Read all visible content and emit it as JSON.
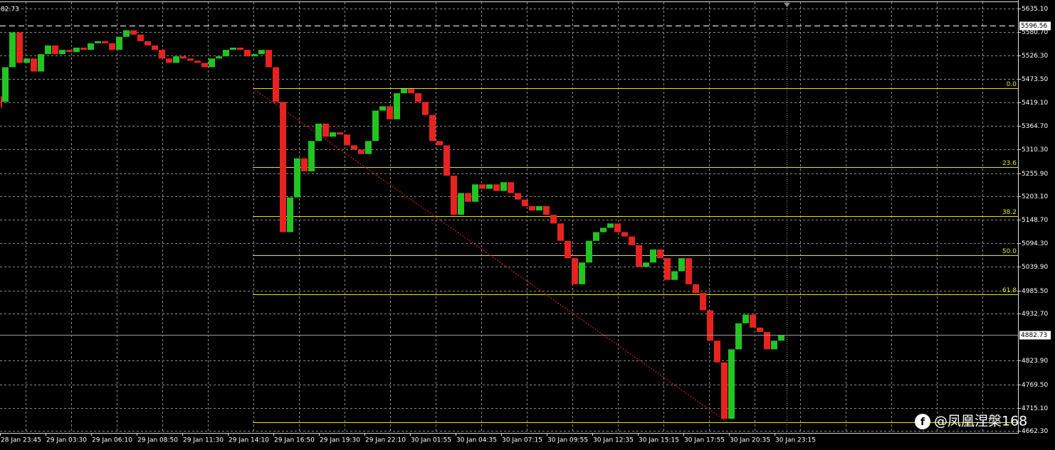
{
  "chart_data": {
    "type": "candlestick",
    "corner_label": "82.73",
    "ylim": [
      4660.7,
      5646.6
    ],
    "yticks": [
      {
        "value": 5635.1,
        "label": "5635.10"
      },
      {
        "value": 5580.7,
        "label": "5580.70"
      },
      {
        "value": 5526.3,
        "label": "5526.30"
      },
      {
        "value": 5473.5,
        "label": "5473.50"
      },
      {
        "value": 5419.1,
        "label": "5419.10"
      },
      {
        "value": 5364.7,
        "label": "5364.70"
      },
      {
        "value": 5310.3,
        "label": "5310.30"
      },
      {
        "value": 5255.9,
        "label": "5255.90"
      },
      {
        "value": 5203.1,
        "label": "5203.10"
      },
      {
        "value": 5148.7,
        "label": "5148.70"
      },
      {
        "value": 5094.3,
        "label": "5094.30"
      },
      {
        "value": 5039.9,
        "label": "5039.90"
      },
      {
        "value": 4985.5,
        "label": "4985.50"
      },
      {
        "value": 4932.7,
        "label": "4932.70"
      },
      {
        "value": 4823.9,
        "label": "4823.90"
      },
      {
        "value": 4769.5,
        "label": "4769.50"
      },
      {
        "value": 4715.1,
        "label": "4715.10"
      },
      {
        "value": 4662.3,
        "label": "4662.30"
      }
    ],
    "x_labels": [
      "28 Jan 23:45",
      "29 Jan 03:30",
      "29 Jan 06:10",
      "29 Jan 08:50",
      "29 Jan 11:30",
      "29 Jan 14:10",
      "29 Jan 16:50",
      "29 Jan 19:30",
      "29 Jan 22:10",
      "30 Jan 01:55",
      "30 Jan 04:35",
      "30 Jan 07:15",
      "30 Jan 09:55",
      "30 Jan 12:35",
      "30 Jan 15:15",
      "30 Jan 17:55",
      "30 Jan 20:35",
      "30 Jan 23:15"
    ],
    "grid": true,
    "series": [
      {
        "up_color": "#22c422",
        "down_color": "#e8231f",
        "values": [
          5420,
          5500,
          5580,
          5510,
          5520,
          5490,
          5530,
          5550,
          5530,
          5540,
          5535,
          5545,
          5540,
          5555,
          5560,
          5555,
          5540,
          5570,
          5585,
          5575,
          5560,
          5550,
          5540,
          5520,
          5510,
          5525,
          5520,
          5515,
          5510,
          5500,
          5520,
          5525,
          5540,
          5545,
          5540,
          5525,
          5530,
          5540,
          5500,
          5420,
          5120,
          5200,
          5290,
          5260,
          5330,
          5370,
          5340,
          5350,
          5345,
          5320,
          5310,
          5300,
          5330,
          5400,
          5410,
          5380,
          5440,
          5450,
          5440,
          5420,
          5390,
          5330,
          5320,
          5250,
          5160,
          5210,
          5190,
          5230,
          5220,
          5230,
          5215,
          5235,
          5210,
          5195,
          5180,
          5170,
          5180,
          5160,
          5140,
          5100,
          5060,
          5000,
          5050,
          5100,
          5120,
          5130,
          5140,
          5120,
          5110,
          5090,
          5040,
          5050,
          5080,
          5060,
          5010,
          5030,
          5060,
          5000,
          4980,
          4940,
          4870,
          4820,
          4690,
          4850,
          4910,
          4930,
          4900,
          4890,
          4850,
          4870,
          4882.73
        ]
      }
    ],
    "high_line": 5596.56,
    "current_price": 4882.73,
    "fib_color": "#e6e600",
    "fib_levels": [
      {
        "value": 5451.7,
        "label": "0.0"
      },
      {
        "value": 5270.1,
        "label": "23.6"
      },
      {
        "value": 5157.7,
        "label": "38.2"
      },
      {
        "value": 5066.9,
        "label": "50.0"
      },
      {
        "value": 4976.0,
        "label": "61.8"
      },
      {
        "value": 4682.0
      }
    ],
    "watermark": "@凤凰涅槃168"
  }
}
